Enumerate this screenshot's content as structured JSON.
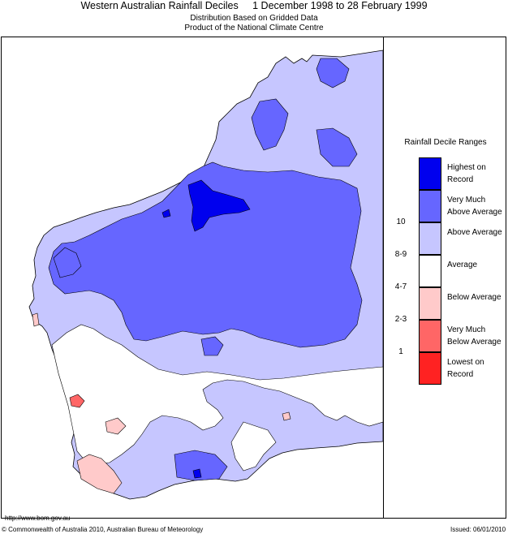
{
  "title": "Western Australian Rainfall Deciles     1 December 1998 to 28 February 1999",
  "subtitle1": "Distribution Based on Gridded Data",
  "subtitle2": "Product of the National Climate Centre",
  "legend": {
    "title": "Rainfall Decile Ranges",
    "items": [
      {
        "range": "",
        "label": "Highest on Record",
        "color": "#0000ee"
      },
      {
        "range": "10",
        "label": "Very Much Above Average",
        "color": "#6666ff"
      },
      {
        "range": "8-9",
        "label": "Above Average",
        "color": "#c6c6ff"
      },
      {
        "range": "4-7",
        "label": "Average",
        "color": "#ffffff"
      },
      {
        "range": "2-3",
        "label": "Below Average",
        "color": "#ffcaca"
      },
      {
        "range": "1",
        "label": "Very Much Below Average",
        "color": "#ff6666"
      },
      {
        "range": "",
        "label": "Lowest on Record",
        "color": "#ff2222"
      }
    ]
  },
  "footer": {
    "url": "http://www.bom.gov.au",
    "copyright": "© Commonwealth of Australia 2010, Australian Bureau of Meteorology",
    "issued": "Issued: 06/01/2010"
  }
}
